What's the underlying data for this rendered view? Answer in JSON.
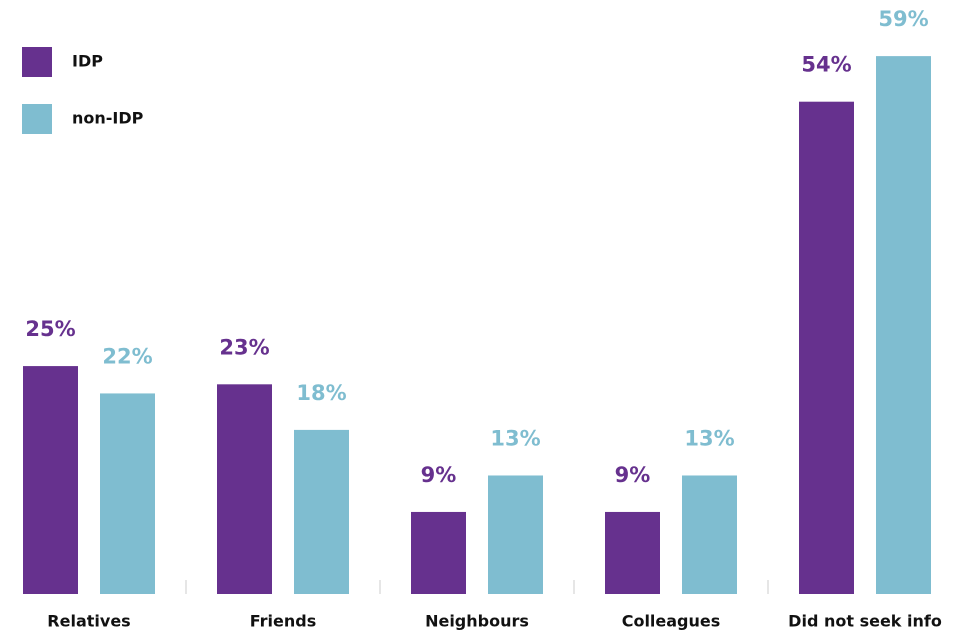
{
  "chart_data": {
    "type": "bar",
    "categories": [
      "Relatives",
      "Friends",
      "Neighbours",
      "Colleagues",
      "Did not seek info"
    ],
    "series": [
      {
        "name": "IDP",
        "color": "#66318e",
        "values": [
          25,
          23,
          9,
          9,
          54
        ],
        "value_labels": [
          "25%",
          "23%",
          "9%",
          "9%",
          "54%"
        ]
      },
      {
        "name": "non-IDP",
        "color": "#7fbdd0",
        "values": [
          22,
          18,
          13,
          13,
          59
        ],
        "value_labels": [
          "22%",
          "18%",
          "13%",
          "13%",
          "59%"
        ]
      }
    ],
    "ylim": [
      0,
      60
    ],
    "legend": "top-left"
  }
}
